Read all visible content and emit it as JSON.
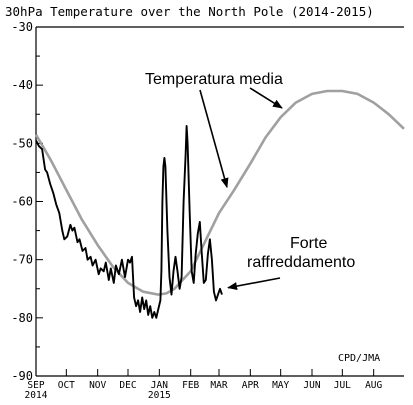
{
  "chart_data": {
    "type": "line",
    "title": "30hPa Temperature over the North Pole (2014-2015)",
    "xlabel": "",
    "ylabel": "",
    "x_axis": {
      "range": [
        "2014-09-01",
        "2015-08-31"
      ],
      "ticks": [
        {
          "label": "SEP",
          "sublabel": "2014",
          "date": "2014-09-01"
        },
        {
          "label": "OCT",
          "date": "2014-10-01"
        },
        {
          "label": "NOV",
          "date": "2014-11-01"
        },
        {
          "label": "DEC",
          "date": "2014-12-01"
        },
        {
          "label": "JAN",
          "sublabel": "2015",
          "date": "2015-01-01"
        },
        {
          "label": "FEB",
          "date": "2015-02-01"
        },
        {
          "label": "MAR",
          "date": "2015-03-01"
        },
        {
          "label": "APR",
          "date": "2015-04-01"
        },
        {
          "label": "MAY",
          "date": "2015-05-01"
        },
        {
          "label": "JUN",
          "date": "2015-06-01"
        },
        {
          "label": "JUL",
          "date": "2015-07-01"
        },
        {
          "label": "AUG",
          "date": "2015-08-01"
        }
      ]
    },
    "y_axis": {
      "range": [
        -90,
        -30
      ],
      "ticks": [
        {
          "label": "-30",
          "value": -30
        },
        {
          "label": "-40",
          "value": -40
        },
        {
          "label": "-50",
          "value": -50
        },
        {
          "label": "-60",
          "value": -60
        },
        {
          "label": "-70",
          "value": -70
        },
        {
          "label": "-80",
          "value": -80
        },
        {
          "label": "-90",
          "value": -90
        }
      ]
    },
    "grid": false,
    "series": [
      {
        "name": "Temperatura media",
        "color": "#a0a0a0",
        "points": [
          [
            "2014-09-01",
            -48.5
          ],
          [
            "2014-09-16",
            -53
          ],
          [
            "2014-10-01",
            -58
          ],
          [
            "2014-10-16",
            -63
          ],
          [
            "2014-11-01",
            -67.5
          ],
          [
            "2014-11-16",
            -71.2
          ],
          [
            "2014-12-01",
            -74
          ],
          [
            "2014-12-16",
            -75.5
          ],
          [
            "2014-12-31",
            -76
          ],
          [
            "2015-01-08",
            -75.8
          ],
          [
            "2015-01-16",
            -75
          ],
          [
            "2015-02-01",
            -72
          ],
          [
            "2015-02-15",
            -67
          ],
          [
            "2015-03-01",
            -62
          ],
          [
            "2015-03-16",
            -58
          ],
          [
            "2015-04-01",
            -53.5
          ],
          [
            "2015-04-16",
            -49
          ],
          [
            "2015-05-01",
            -45.5
          ],
          [
            "2015-05-16",
            -43
          ],
          [
            "2015-06-01",
            -41.5
          ],
          [
            "2015-06-16",
            -41
          ],
          [
            "2015-07-01",
            -41
          ],
          [
            "2015-07-16",
            -41.5
          ],
          [
            "2015-08-01",
            -43
          ],
          [
            "2015-08-16",
            -45
          ],
          [
            "2015-08-31",
            -47.5
          ]
        ]
      },
      {
        "color": "#000000",
        "points": [
          [
            "2014-09-01",
            -49.5
          ],
          [
            "2014-09-04",
            -50.5
          ],
          [
            "2014-09-07",
            -51
          ],
          [
            "2014-09-10",
            -54.5
          ],
          [
            "2014-09-12",
            -55
          ],
          [
            "2014-09-15",
            -57
          ],
          [
            "2014-09-18",
            -58.5
          ],
          [
            "2014-09-21",
            -60.5
          ],
          [
            "2014-09-24",
            -62
          ],
          [
            "2014-09-27",
            -65
          ],
          [
            "2014-09-29",
            -66.5
          ],
          [
            "2014-10-02",
            -66
          ],
          [
            "2014-10-05",
            -64
          ],
          [
            "2014-10-07",
            -65
          ],
          [
            "2014-10-09",
            -64.5
          ],
          [
            "2014-10-12",
            -67
          ],
          [
            "2014-10-14",
            -66.5
          ],
          [
            "2014-10-17",
            -68.5
          ],
          [
            "2014-10-20",
            -68
          ],
          [
            "2014-10-22",
            -70
          ],
          [
            "2014-10-25",
            -69.5
          ],
          [
            "2014-10-27",
            -71
          ],
          [
            "2014-10-30",
            -70
          ],
          [
            "2014-11-02",
            -72.5
          ],
          [
            "2014-11-04",
            -71.5
          ],
          [
            "2014-11-07",
            -72
          ],
          [
            "2014-11-09",
            -70.5
          ],
          [
            "2014-11-12",
            -73.5
          ],
          [
            "2014-11-14",
            -71.5
          ],
          [
            "2014-11-17",
            -74
          ],
          [
            "2014-11-19",
            -71
          ],
          [
            "2014-11-22",
            -72.5
          ],
          [
            "2014-11-25",
            -70
          ],
          [
            "2014-11-28",
            -73
          ],
          [
            "2014-12-01",
            -70
          ],
          [
            "2014-12-03",
            -70.5
          ],
          [
            "2014-12-05",
            -69.5
          ],
          [
            "2014-12-07",
            -76.5
          ],
          [
            "2014-12-09",
            -78
          ],
          [
            "2014-12-11",
            -77
          ],
          [
            "2014-12-13",
            -79
          ],
          [
            "2014-12-15",
            -76.5
          ],
          [
            "2014-12-17",
            -78.5
          ],
          [
            "2014-12-19",
            -77
          ],
          [
            "2014-12-21",
            -79.5
          ],
          [
            "2014-12-23",
            -78
          ],
          [
            "2014-12-25",
            -80
          ],
          [
            "2014-12-27",
            -79
          ],
          [
            "2014-12-29",
            -80
          ],
          [
            "2014-12-31",
            -78.5
          ],
          [
            "2015-01-02",
            -77
          ],
          [
            "2015-01-03",
            -72
          ],
          [
            "2015-01-04",
            -60
          ],
          [
            "2015-01-05",
            -54
          ],
          [
            "2015-01-06",
            -52.5
          ],
          [
            "2015-01-07",
            -54
          ],
          [
            "2015-01-09",
            -65
          ],
          [
            "2015-01-11",
            -73
          ],
          [
            "2015-01-13",
            -76
          ],
          [
            "2015-01-15",
            -72
          ],
          [
            "2015-01-17",
            -69.5
          ],
          [
            "2015-01-19",
            -72
          ],
          [
            "2015-01-21",
            -75
          ],
          [
            "2015-01-23",
            -73
          ],
          [
            "2015-01-25",
            -60
          ],
          [
            "2015-01-27",
            -52
          ],
          [
            "2015-01-28",
            -47
          ],
          [
            "2015-01-29",
            -50
          ],
          [
            "2015-01-31",
            -62
          ],
          [
            "2015-02-02",
            -72
          ],
          [
            "2015-02-04",
            -74
          ],
          [
            "2015-02-06",
            -69
          ],
          [
            "2015-02-08",
            -65.5
          ],
          [
            "2015-02-10",
            -63.5
          ],
          [
            "2015-02-12",
            -69
          ],
          [
            "2015-02-14",
            -74
          ],
          [
            "2015-02-16",
            -73.5
          ],
          [
            "2015-02-18",
            -69
          ],
          [
            "2015-02-20",
            -66.5
          ],
          [
            "2015-02-22",
            -70
          ],
          [
            "2015-02-24",
            -75.5
          ],
          [
            "2015-02-26",
            -77
          ],
          [
            "2015-02-28",
            -76
          ],
          [
            "2015-03-02",
            -75
          ],
          [
            "2015-03-04",
            -76
          ]
        ]
      }
    ],
    "annotations": [
      {
        "text": "Temperatura media",
        "points_to": [
          "2015-03-01",
          -62
        ]
      },
      {
        "text": "Forte",
        "line": 1
      },
      {
        "text": "raffreddamento",
        "line": 2,
        "points_to": [
          "2015-03-06",
          -75
        ]
      },
      {
        "text": "CPD/JMA"
      }
    ],
    "legend": "none"
  }
}
